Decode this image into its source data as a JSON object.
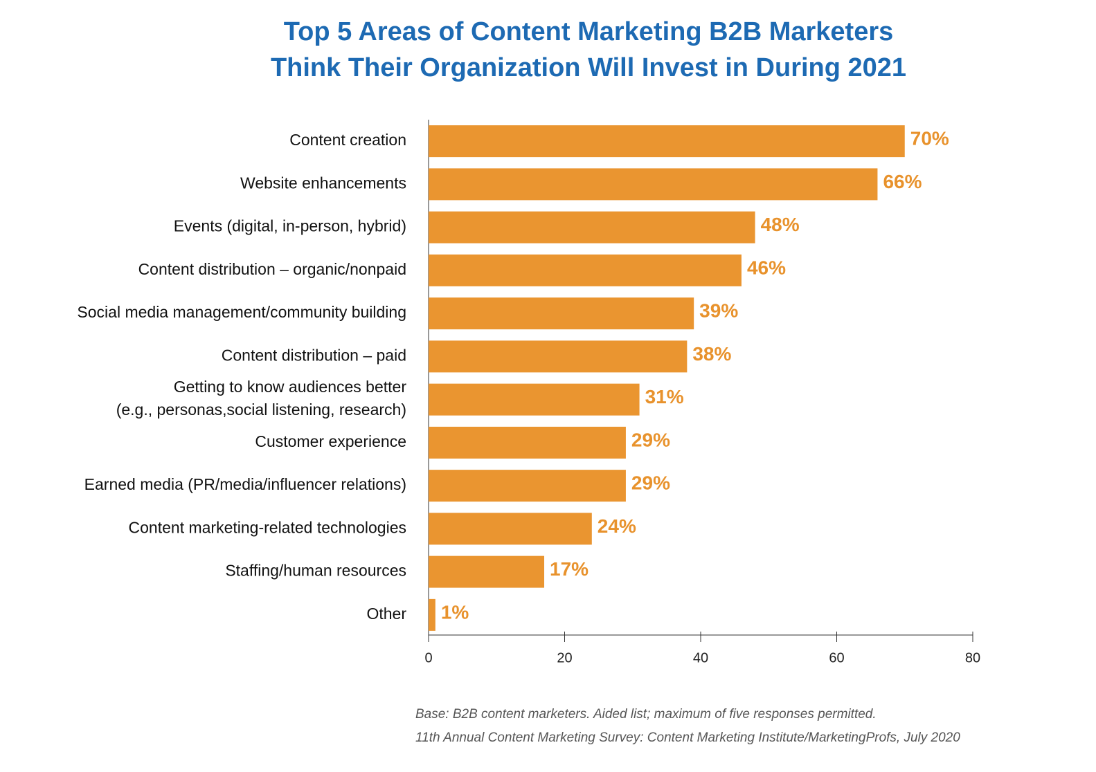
{
  "chart_data": {
    "type": "bar",
    "orientation": "horizontal",
    "title": "Top 5 Areas of Content Marketing B2B Marketers\nThink Their Organization Will Invest in During 2021",
    "categories": [
      "Content creation",
      "Website enhancements",
      "Events (digital, in-person, hybrid)",
      "Content distribution – organic/nonpaid",
      "Social media management/community building",
      "Content distribution – paid",
      "Getting to know audiences better\n(e.g., personas,social listening, research)",
      "Customer experience",
      "Earned media (PR/media/influencer relations)",
      "Content marketing-related technologies",
      "Staffing/human resources",
      "Other"
    ],
    "values": [
      70,
      66,
      48,
      46,
      39,
      38,
      31,
      29,
      29,
      24,
      17,
      1
    ],
    "value_labels": [
      "70%",
      "66%",
      "48%",
      "46%",
      "39%",
      "38%",
      "31%",
      "29%",
      "29%",
      "24%",
      "17%",
      "1%"
    ],
    "color": "#ea9530",
    "xlim": [
      0,
      80
    ],
    "xticks": [
      0,
      20,
      40,
      60,
      80
    ],
    "notes": [
      "Base: B2B content marketers. Aided list; maximum of five responses permitted.",
      "11th Annual Content Marketing Survey: Content Marketing Institute/MarketingProfs, July 2020"
    ]
  }
}
